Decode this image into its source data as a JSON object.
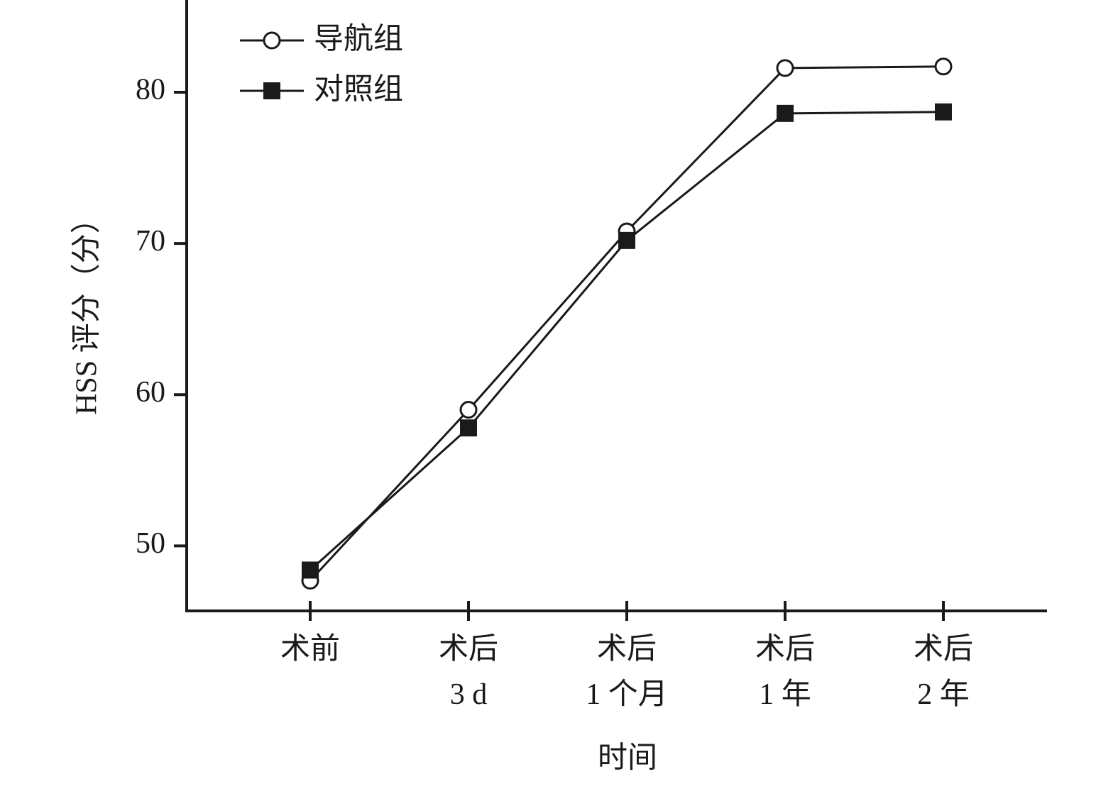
{
  "chart_data": {
    "type": "line",
    "ylabel": "HSS 评分（分）",
    "xlabel": "时间",
    "categories": [
      "术前",
      "术后\n3 d",
      "术后\n1 个月",
      "术后\n1 年",
      "术后\n2 年"
    ],
    "series": [
      {
        "name": "导航组",
        "color": "#1a1a1a",
        "marker": "open-circle",
        "values": [
          47.7,
          59.0,
          70.8,
          81.6,
          81.7
        ]
      },
      {
        "name": "对照组",
        "color": "#1a1a1a",
        "marker": "filled-square",
        "values": [
          48.4,
          57.8,
          70.2,
          78.6,
          78.7
        ]
      }
    ],
    "ylim": [
      45.7,
      86.1
    ],
    "yticks": [
      50,
      60,
      70,
      80
    ],
    "legend": "upper left"
  }
}
